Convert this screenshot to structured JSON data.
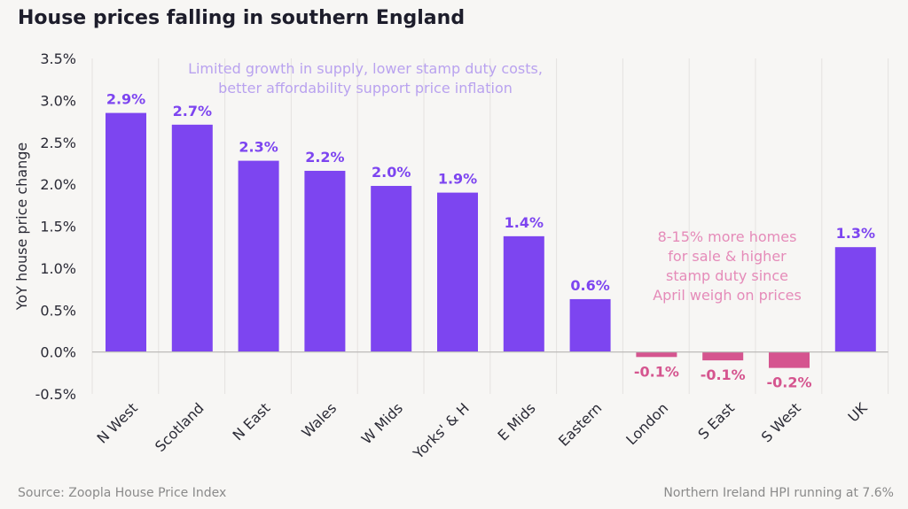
{
  "title": "House prices falling in southern England",
  "footer": {
    "source": "Source: Zoopla House Price Index",
    "note": "Northern Ireland HPI running at 7.6%"
  },
  "chart_data": {
    "type": "bar",
    "title": "House prices falling in southern England",
    "xlabel": "",
    "ylabel": "YoY house price change",
    "ylim": [
      -0.5,
      3.5
    ],
    "yticks": [
      -0.5,
      0.0,
      0.5,
      1.0,
      1.5,
      2.0,
      2.5,
      3.0,
      3.5
    ],
    "ytick_labels": [
      "-0.5%",
      "0.0%",
      "0.5%",
      "1.0%",
      "1.5%",
      "2.0%",
      "2.5%",
      "3.0%",
      "3.5%"
    ],
    "grid": "vertical separators between categories",
    "categories": [
      "N West",
      "Scotland",
      "N East",
      "Wales",
      "W Mids",
      "Yorks' & H",
      "E Mids",
      "Eastern",
      "London",
      "S East",
      "S West",
      "UK"
    ],
    "values": [
      2.85,
      2.71,
      2.28,
      2.16,
      1.98,
      1.9,
      1.38,
      0.63,
      -0.06,
      -0.1,
      -0.19,
      1.25
    ],
    "data_labels": [
      "2.9%",
      "2.7%",
      "2.3%",
      "2.2%",
      "2.0%",
      "1.9%",
      "1.4%",
      "0.6%",
      "-0.1%",
      "-0.1%",
      "-0.2%",
      "1.3%"
    ],
    "colors": {
      "positive": "#7d45f0",
      "negative": "#d5558f",
      "annotation_top": "#b9a2ef",
      "annotation_bottom": "#e58bb9"
    },
    "annotations": [
      {
        "lines": [
          "Limited growth in supply, lower stamp duty costs,",
          "better affordability support price inflation"
        ]
      },
      {
        "lines": [
          "8-15% more homes",
          "for sale & higher",
          "stamp duty since",
          "April weigh on prices"
        ]
      }
    ]
  }
}
